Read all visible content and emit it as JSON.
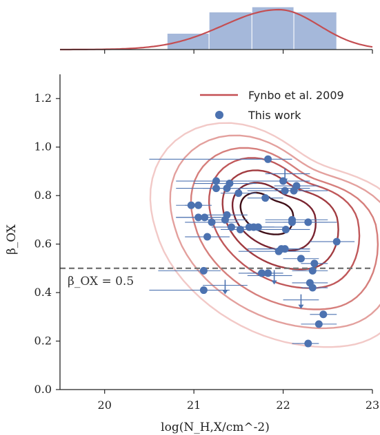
{
  "chart_data": {
    "type": "scatter",
    "xlabel": "log(N_H,X/cm^-2)",
    "ylabel": "β_OX",
    "xlim": [
      19.5,
      23
    ],
    "ylim": [
      0.0,
      1.3
    ],
    "xticks": [
      20,
      21,
      22,
      23
    ],
    "yticks": [
      0.0,
      0.2,
      0.4,
      0.6,
      0.8,
      1.0,
      1.2
    ],
    "grid": false,
    "legend_position": "top-right",
    "legend": [
      {
        "label": "Fynbo et al. 2009",
        "marker": "line",
        "color": "#c44e52"
      },
      {
        "label": "This work",
        "marker": "circle",
        "color": "#4c72b0"
      }
    ],
    "reference_line": {
      "y": 0.5,
      "label": "β_OX = 0.5",
      "style": "dashed",
      "color": "#777777"
    },
    "series": [
      {
        "name": "This work",
        "color": "#4c72b0",
        "points": [
          {
            "x": 21.83,
            "y": 0.95,
            "xlo": 20.5,
            "xhi": 22.1,
            "upper_limit": false
          },
          {
            "x": 21.25,
            "y": 0.86,
            "xlo": 20.8,
            "xhi": 21.6,
            "upper_limit": false
          },
          {
            "x": 21.25,
            "y": 0.83,
            "xlo": 20.8,
            "xhi": 22.3,
            "upper_limit": false
          },
          {
            "x": 21.4,
            "y": 0.85,
            "xlo": 21.0,
            "xhi": 21.7,
            "upper_limit": false
          },
          {
            "x": 21.37,
            "y": 0.83,
            "xlo": 21.1,
            "xhi": 21.6,
            "upper_limit": false
          },
          {
            "x": 21.5,
            "y": 0.81,
            "xlo": 21.3,
            "xhi": 21.7,
            "upper_limit": false
          },
          {
            "x": 22.0,
            "y": 0.86,
            "xlo": 21.6,
            "xhi": 22.3,
            "upper_limit": false
          },
          {
            "x": 22.02,
            "y": 0.89,
            "xlo": 21.8,
            "xhi": 22.3,
            "upper_limit": true
          },
          {
            "x": 22.02,
            "y": 0.82,
            "xlo": 21.6,
            "xhi": 22.5,
            "upper_limit": false
          },
          {
            "x": 22.15,
            "y": 0.84,
            "xlo": 21.9,
            "xhi": 22.4,
            "upper_limit": false
          },
          {
            "x": 22.12,
            "y": 0.82,
            "xlo": 21.9,
            "xhi": 22.4,
            "upper_limit": false
          },
          {
            "x": 21.8,
            "y": 0.79,
            "xlo": 21.6,
            "xhi": 22.0,
            "upper_limit": false
          },
          {
            "x": 20.97,
            "y": 0.76,
            "xlo": 20.8,
            "xhi": 21.1,
            "upper_limit": false
          },
          {
            "x": 21.05,
            "y": 0.76,
            "xlo": 20.9,
            "xhi": 21.2,
            "upper_limit": false
          },
          {
            "x": 21.37,
            "y": 0.72,
            "xlo": 21.1,
            "xhi": 21.6,
            "upper_limit": false
          },
          {
            "x": 21.35,
            "y": 0.7,
            "xlo": 21.1,
            "xhi": 21.6,
            "upper_limit": false
          },
          {
            "x": 21.05,
            "y": 0.71,
            "xlo": 20.8,
            "xhi": 21.3,
            "upper_limit": false
          },
          {
            "x": 21.12,
            "y": 0.71,
            "xlo": 20.8,
            "xhi": 21.4,
            "upper_limit": false
          },
          {
            "x": 21.2,
            "y": 0.69,
            "xlo": 20.9,
            "xhi": 21.5,
            "upper_limit": false
          },
          {
            "x": 21.42,
            "y": 0.67,
            "xlo": 21.2,
            "xhi": 21.7,
            "upper_limit": false
          },
          {
            "x": 21.52,
            "y": 0.66,
            "xlo": 21.3,
            "xhi": 21.8,
            "upper_limit": false
          },
          {
            "x": 21.62,
            "y": 0.67,
            "xlo": 21.4,
            "xhi": 21.9,
            "upper_limit": false
          },
          {
            "x": 21.67,
            "y": 0.67,
            "xlo": 21.4,
            "xhi": 21.9,
            "upper_limit": false
          },
          {
            "x": 21.72,
            "y": 0.67,
            "xlo": 21.4,
            "xhi": 22.0,
            "upper_limit": false
          },
          {
            "x": 22.03,
            "y": 0.66,
            "xlo": 21.8,
            "xhi": 22.3,
            "upper_limit": false
          },
          {
            "x": 22.1,
            "y": 0.69,
            "xlo": 21.8,
            "xhi": 22.5,
            "upper_limit": false
          },
          {
            "x": 22.1,
            "y": 0.7,
            "xlo": 21.8,
            "xhi": 22.5,
            "upper_limit": false
          },
          {
            "x": 22.28,
            "y": 0.69,
            "xlo": 22.0,
            "xhi": 22.6,
            "upper_limit": false
          },
          {
            "x": 21.15,
            "y": 0.63,
            "xlo": 20.9,
            "xhi": 21.4,
            "upper_limit": false
          },
          {
            "x": 22.6,
            "y": 0.61,
            "xlo": 22.3,
            "xhi": 22.8,
            "upper_limit": false
          },
          {
            "x": 21.95,
            "y": 0.57,
            "xlo": 21.5,
            "xhi": 22.3,
            "upper_limit": false
          },
          {
            "x": 21.98,
            "y": 0.58,
            "xlo": 21.6,
            "xhi": 22.3,
            "upper_limit": false
          },
          {
            "x": 22.02,
            "y": 0.58,
            "xlo": 21.7,
            "xhi": 22.3,
            "upper_limit": false
          },
          {
            "x": 22.2,
            "y": 0.54,
            "xlo": 22.0,
            "xhi": 22.4,
            "upper_limit": false
          },
          {
            "x": 22.35,
            "y": 0.52,
            "xlo": 22.2,
            "xhi": 22.5,
            "upper_limit": false
          },
          {
            "x": 22.33,
            "y": 0.49,
            "xlo": 22.1,
            "xhi": 22.5,
            "upper_limit": false
          },
          {
            "x": 21.11,
            "y": 0.49,
            "xlo": 20.6,
            "xhi": 21.3,
            "upper_limit": false
          },
          {
            "x": 21.76,
            "y": 0.48,
            "xlo": 21.5,
            "xhi": 22.0,
            "upper_limit": false
          },
          {
            "x": 21.83,
            "y": 0.48,
            "xlo": 21.6,
            "xhi": 22.0,
            "upper_limit": false
          },
          {
            "x": 21.9,
            "y": 0.47,
            "xlo": 21.6,
            "xhi": 22.1,
            "upper_limit": true
          },
          {
            "x": 22.3,
            "y": 0.44,
            "xlo": 22.1,
            "xhi": 22.5,
            "upper_limit": false
          },
          {
            "x": 22.33,
            "y": 0.42,
            "xlo": 22.2,
            "xhi": 22.5,
            "upper_limit": false
          },
          {
            "x": 21.11,
            "y": 0.41,
            "xlo": 20.5,
            "xhi": 21.4,
            "upper_limit": false
          },
          {
            "x": 21.35,
            "y": 0.43,
            "xlo": 21.1,
            "xhi": 21.6,
            "upper_limit": true
          },
          {
            "x": 22.2,
            "y": 0.37,
            "xlo": 22.0,
            "xhi": 22.4,
            "upper_limit": true
          },
          {
            "x": 22.45,
            "y": 0.31,
            "xlo": 22.3,
            "xhi": 22.6,
            "upper_limit": false
          },
          {
            "x": 22.4,
            "y": 0.27,
            "xlo": 22.2,
            "xhi": 22.6,
            "upper_limit": false
          },
          {
            "x": 22.28,
            "y": 0.19,
            "xlo": 22.1,
            "xhi": 22.4,
            "upper_limit": false
          }
        ]
      },
      {
        "name": "Fynbo et al. 2009",
        "color": "#c44e52",
        "kind": "kde_contours",
        "contours": [
          {
            "level": 1,
            "color": "#f2c9c7",
            "cx": 21.9,
            "cy": 0.66,
            "rx": 1.3,
            "ry": 0.43
          },
          {
            "level": 2,
            "color": "#e3a09d",
            "cx": 21.93,
            "cy": 0.67,
            "rx": 1.12,
            "ry": 0.37
          },
          {
            "level": 3,
            "color": "#d67f7c",
            "cx": 21.95,
            "cy": 0.68,
            "rx": 0.92,
            "ry": 0.31
          },
          {
            "level": 4,
            "color": "#c0585a",
            "cx": 21.96,
            "cy": 0.7,
            "rx": 0.74,
            "ry": 0.25
          },
          {
            "level": 5,
            "color": "#a23c41",
            "cx": 21.93,
            "cy": 0.71,
            "rx": 0.57,
            "ry": 0.19
          },
          {
            "level": 6,
            "color": "#7a2430",
            "cx": 21.87,
            "cy": 0.72,
            "rx": 0.41,
            "ry": 0.13
          },
          {
            "level": 7,
            "color": "#3f0f18",
            "cx": 21.8,
            "cy": 0.73,
            "rx": 0.26,
            "ry": 0.08
          }
        ],
        "x_marginal_kde": {
          "x": [
            19.5,
            20.0,
            20.5,
            21.0,
            21.5,
            22.0,
            22.5,
            23.0
          ],
          "density": [
            0.0,
            0.01,
            0.07,
            0.3,
            0.75,
            1.0,
            0.45,
            0.05
          ]
        }
      }
    ],
    "marginal_histogram": {
      "bins": [
        20.7,
        21.17,
        21.65,
        22.12,
        22.6
      ],
      "counts": [
        0.38,
        0.88,
        1.0,
        0.88
      ],
      "color": "#a5b8da"
    }
  }
}
